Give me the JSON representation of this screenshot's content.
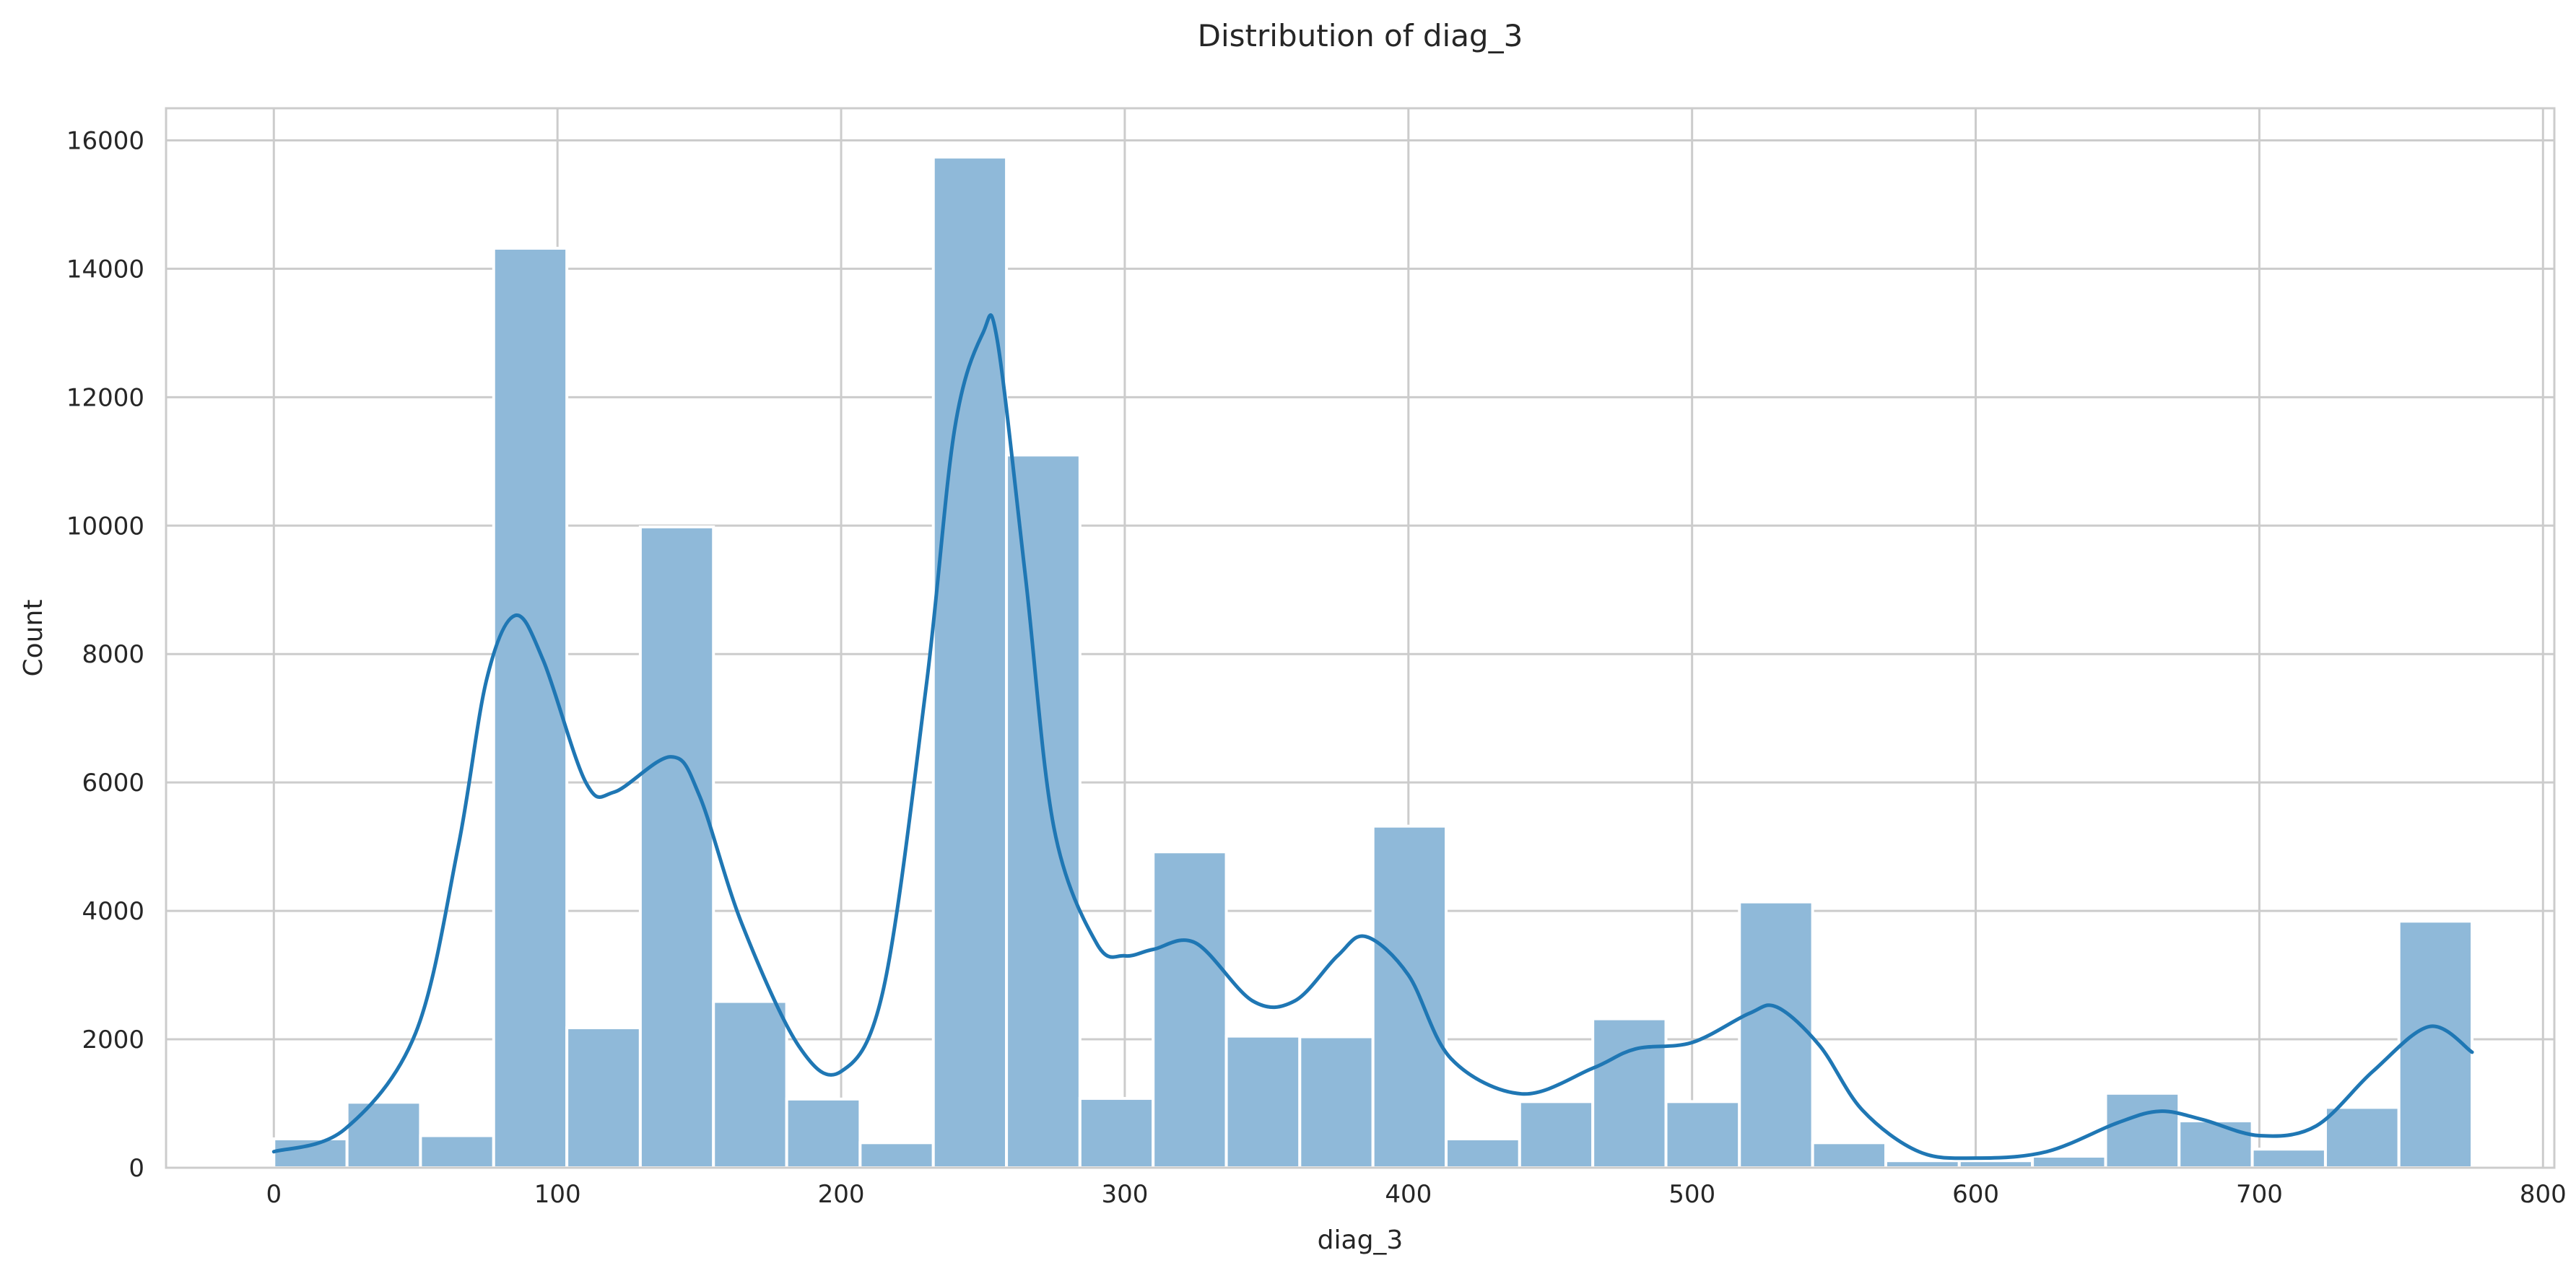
{
  "chart_data": {
    "type": "bar",
    "title": "Distribution of diag_3",
    "xlabel": "diag_3",
    "ylabel": "Count",
    "xlim": [
      -38,
      804
    ],
    "ylim": [
      0,
      16500
    ],
    "xticks": [
      0,
      100,
      200,
      300,
      400,
      500,
      600,
      700,
      800
    ],
    "yticks": [
      0,
      2000,
      4000,
      6000,
      8000,
      10000,
      12000,
      14000,
      16000
    ],
    "grid": true,
    "bin_edges": [
      0,
      25.8,
      51.7,
      77.5,
      103.3,
      129.2,
      155.0,
      180.8,
      206.7,
      232.5,
      258.3,
      284.2,
      310.0,
      335.8,
      361.7,
      387.5,
      413.3,
      439.2,
      465.0,
      490.8,
      516.7,
      542.5,
      568.3,
      594.2,
      620.0,
      645.8,
      671.7,
      697.5,
      723.3,
      749.2,
      775.0
    ],
    "counts": [
      450,
      1020,
      500,
      14320,
      2180,
      9980,
      2590,
      1070,
      390,
      15740,
      11100,
      1080,
      4920,
      2050,
      2040,
      5320,
      450,
      1030,
      2320,
      1030,
      4140,
      390,
      110,
      110,
      180,
      1160,
      730,
      290,
      940,
      3840
    ],
    "kde": {
      "x": [
        0,
        25,
        50,
        65,
        75,
        85,
        95,
        110,
        120,
        140,
        150,
        165,
        185,
        200,
        215,
        230,
        240,
        250,
        255,
        265,
        275,
        290,
        300,
        310,
        325,
        345,
        360,
        375,
        385,
        400,
        415,
        440,
        465,
        480,
        500,
        520,
        530,
        545,
        560,
        580,
        600,
        625,
        650,
        665,
        680,
        700,
        720,
        740,
        760,
        775
      ],
      "y": [
        250,
        600,
        2100,
        5000,
        7600,
        8600,
        7900,
        6000,
        5850,
        6400,
        5800,
        3800,
        1900,
        1500,
        2800,
        7500,
        11500,
        13000,
        12900,
        9200,
        5300,
        3500,
        3300,
        3400,
        3500,
        2600,
        2600,
        3300,
        3600,
        3000,
        1700,
        1150,
        1550,
        1850,
        1950,
        2400,
        2500,
        1900,
        900,
        250,
        150,
        250,
        700,
        880,
        750,
        500,
        650,
        1500,
        2200,
        1800
      ]
    },
    "colors": {
      "bar_fill": "#8fb9d9",
      "bar_edge": "#ffffff",
      "kde_line": "#1f77b4",
      "grid": "#cccccc",
      "frame": "#cccccc",
      "text": "#262626"
    }
  }
}
